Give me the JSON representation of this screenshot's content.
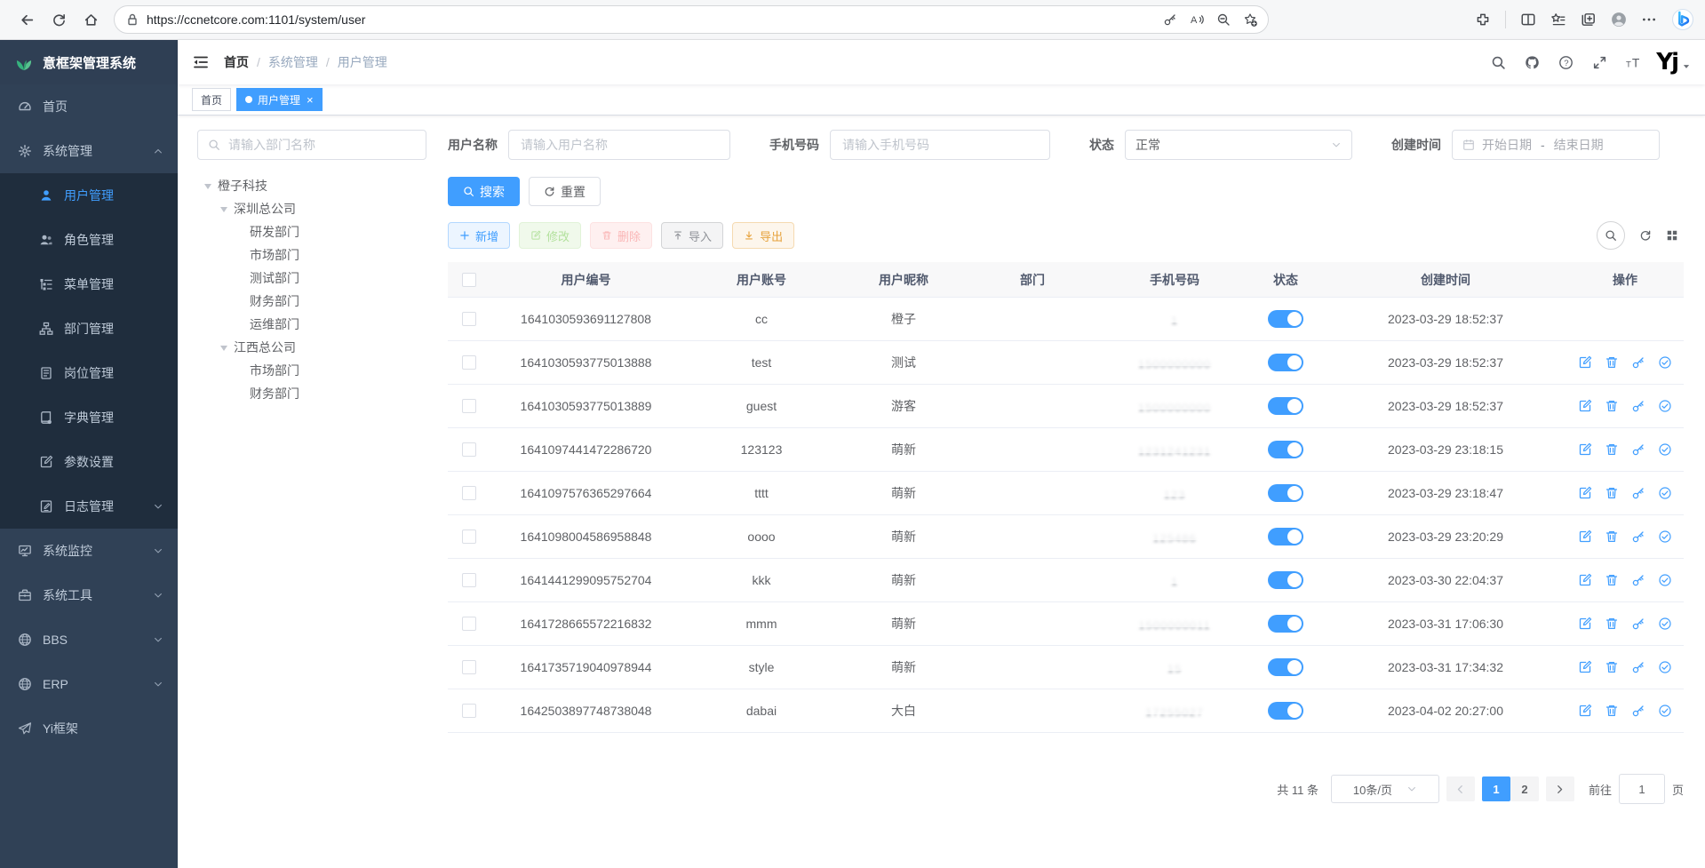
{
  "browser": {
    "url": "https://ccnetcore.com:1101/system/user",
    "left_icons": [
      "back-icon",
      "refresh-icon",
      "home-icon"
    ],
    "pill_left_icon": "lock-icon",
    "pill_right_icons": [
      "key-icon",
      "read-aloud-icon",
      "zoom-out-icon",
      "star-plus-icon"
    ],
    "right_icons": [
      "extensions-icon",
      "split-screen-icon",
      "favorites-icon",
      "collections-icon",
      "profile-avatar-icon",
      "more-icon",
      "copilot-icon"
    ]
  },
  "app": {
    "title": "意框架管理系统",
    "logo_icon": "leaf-logo-icon"
  },
  "navbar": {
    "breadcrumb": [
      "首页",
      "系统管理",
      "用户管理"
    ],
    "separator": "/",
    "right_icons": [
      "search-icon",
      "github-icon",
      "help-icon",
      "fullscreen-icon",
      "font-size-icon"
    ],
    "avatar_monogram": "Yj"
  },
  "tabs": [
    {
      "label": "首页",
      "active": false,
      "closable": false
    },
    {
      "label": "用户管理",
      "active": true,
      "closable": true,
      "close_glyph": "×"
    }
  ],
  "sidebar": {
    "items": [
      {
        "label": "首页",
        "icon": "dashboard-icon",
        "level": 1
      },
      {
        "label": "系统管理",
        "icon": "gear-icon",
        "level": 1,
        "caret": "up"
      },
      {
        "label": "用户管理",
        "icon": "user-icon",
        "level": 2,
        "active": true
      },
      {
        "label": "角色管理",
        "icon": "roles-icon",
        "level": 2
      },
      {
        "label": "菜单管理",
        "icon": "menu-tree-icon",
        "level": 2
      },
      {
        "label": "部门管理",
        "icon": "org-tree-icon",
        "level": 2
      },
      {
        "label": "岗位管理",
        "icon": "post-icon",
        "level": 2
      },
      {
        "label": "字典管理",
        "icon": "dict-icon",
        "level": 2
      },
      {
        "label": "参数设置",
        "icon": "edit-icon",
        "level": 2
      },
      {
        "label": "日志管理",
        "icon": "log-icon",
        "level": 2,
        "caret": "down"
      },
      {
        "label": "系统监控",
        "icon": "monitor-icon",
        "level": 1,
        "caret": "down"
      },
      {
        "label": "系统工具",
        "icon": "toolbox-icon",
        "level": 1,
        "caret": "down"
      },
      {
        "label": "BBS",
        "icon": "globe-icon",
        "level": 1,
        "caret": "down"
      },
      {
        "label": "ERP",
        "icon": "globe-icon",
        "level": 1,
        "caret": "down"
      },
      {
        "label": "Yi框架",
        "icon": "paper-plane-icon",
        "level": 1
      }
    ]
  },
  "tree": {
    "search_placeholder": "请输入部门名称",
    "nodes": [
      {
        "label": "橙子科技",
        "indent": 0,
        "expanded": true
      },
      {
        "label": "深圳总公司",
        "indent": 1,
        "expanded": true
      },
      {
        "label": "研发部门",
        "indent": 2
      },
      {
        "label": "市场部门",
        "indent": 2
      },
      {
        "label": "测试部门",
        "indent": 2
      },
      {
        "label": "财务部门",
        "indent": 2
      },
      {
        "label": "运维部门",
        "indent": 2
      },
      {
        "label": "江西总公司",
        "indent": 1,
        "expanded": true
      },
      {
        "label": "市场部门",
        "indent": 2
      },
      {
        "label": "财务部门",
        "indent": 2
      }
    ]
  },
  "filters": {
    "username": {
      "label": "用户名称",
      "placeholder": "请输入用户名称"
    },
    "phone": {
      "label": "手机号码",
      "placeholder": "请输入手机号码"
    },
    "status": {
      "label": "状态",
      "value": "正常"
    },
    "created": {
      "label": "创建时间",
      "start_placeholder": "开始日期",
      "separator": "-",
      "end_placeholder": "结束日期"
    }
  },
  "actions": {
    "search": {
      "label": "搜索",
      "icon": "search-icon"
    },
    "reset": {
      "label": "重置",
      "icon": "refresh-icon"
    },
    "add": {
      "label": "新增",
      "icon": "plus-icon"
    },
    "modify": {
      "label": "修改",
      "icon": "edit-icon",
      "disabled": true
    },
    "remove": {
      "label": "删除",
      "icon": "delete-icon",
      "disabled": true
    },
    "import": {
      "label": "导入",
      "icon": "upload-icon"
    },
    "export": {
      "label": "导出",
      "icon": "download-icon"
    },
    "mini_icons": [
      "search-icon",
      "refresh-icon",
      "grid-icon"
    ]
  },
  "table": {
    "columns": [
      "用户编号",
      "用户账号",
      "用户昵称",
      "部门",
      "手机号码",
      "状态",
      "创建时间",
      "操作"
    ],
    "action_icons": [
      "edit-icon",
      "delete-icon",
      "key-icon",
      "check-circle-icon"
    ],
    "rows": [
      {
        "id": "1641030593691127808",
        "account": "cc",
        "nickname": "橙子",
        "dept": "",
        "phone": "1",
        "phone_redacted": true,
        "status_on": true,
        "created": "2023-03-29 18:52:37",
        "actions": false
      },
      {
        "id": "1641030593775013888",
        "account": "test",
        "nickname": "测试",
        "dept": "",
        "phone": "1500000000",
        "phone_redacted": true,
        "status_on": true,
        "created": "2023-03-29 18:52:37",
        "actions": true
      },
      {
        "id": "1641030593775013889",
        "account": "guest",
        "nickname": "游客",
        "dept": "",
        "phone": "1500000000",
        "phone_redacted": true,
        "status_on": true,
        "created": "2023-03-29 18:52:37",
        "actions": true
      },
      {
        "id": "1641097441472286720",
        "account": "123123",
        "nickname": "萌新",
        "dept": "",
        "phone": "1231241231",
        "phone_redacted": true,
        "status_on": true,
        "created": "2023-03-29 23:18:15",
        "actions": true
      },
      {
        "id": "1641097576365297664",
        "account": "tttt",
        "nickname": "萌新",
        "dept": "",
        "phone": "123",
        "phone_redacted": true,
        "status_on": true,
        "created": "2023-03-29 23:18:47",
        "actions": true
      },
      {
        "id": "1641098004586958848",
        "account": "oooo",
        "nickname": "萌新",
        "dept": "",
        "phone": "125486",
        "phone_redacted": true,
        "status_on": true,
        "created": "2023-03-29 23:20:29",
        "actions": true
      },
      {
        "id": "1641441299095752704",
        "account": "kkk",
        "nickname": "萌新",
        "dept": "",
        "phone": "1",
        "phone_redacted": true,
        "status_on": true,
        "created": "2023-03-30 22:04:37",
        "actions": true
      },
      {
        "id": "1641728665572216832",
        "account": "mmm",
        "nickname": "萌新",
        "dept": "",
        "phone": "1500000011",
        "phone_redacted": true,
        "status_on": true,
        "created": "2023-03-31 17:06:30",
        "actions": true
      },
      {
        "id": "1641735719040978944",
        "account": "style",
        "nickname": "萌新",
        "dept": "",
        "phone": "15",
        "phone_redacted": true,
        "status_on": true,
        "created": "2023-03-31 17:34:32",
        "actions": true
      },
      {
        "id": "1642503897748738048",
        "account": "dabai",
        "nickname": "大白",
        "dept": "",
        "phone": "17255027",
        "phone_redacted": true,
        "status_on": true,
        "created": "2023-04-02 20:27:00",
        "actions": true
      }
    ]
  },
  "pagination": {
    "total": "共 11 条",
    "page_size": "10条/页",
    "pages": [
      "1",
      "2"
    ],
    "active_page": "1",
    "goto_label": "前往",
    "goto_value": "1",
    "unit": "页"
  },
  "colors": {
    "accent": "#409EFF",
    "sidebar_bg": "#304156",
    "submenu_bg": "#1f2d3d",
    "active_tab_bg": "#409EFF",
    "toggle_on": "#409EFF"
  }
}
